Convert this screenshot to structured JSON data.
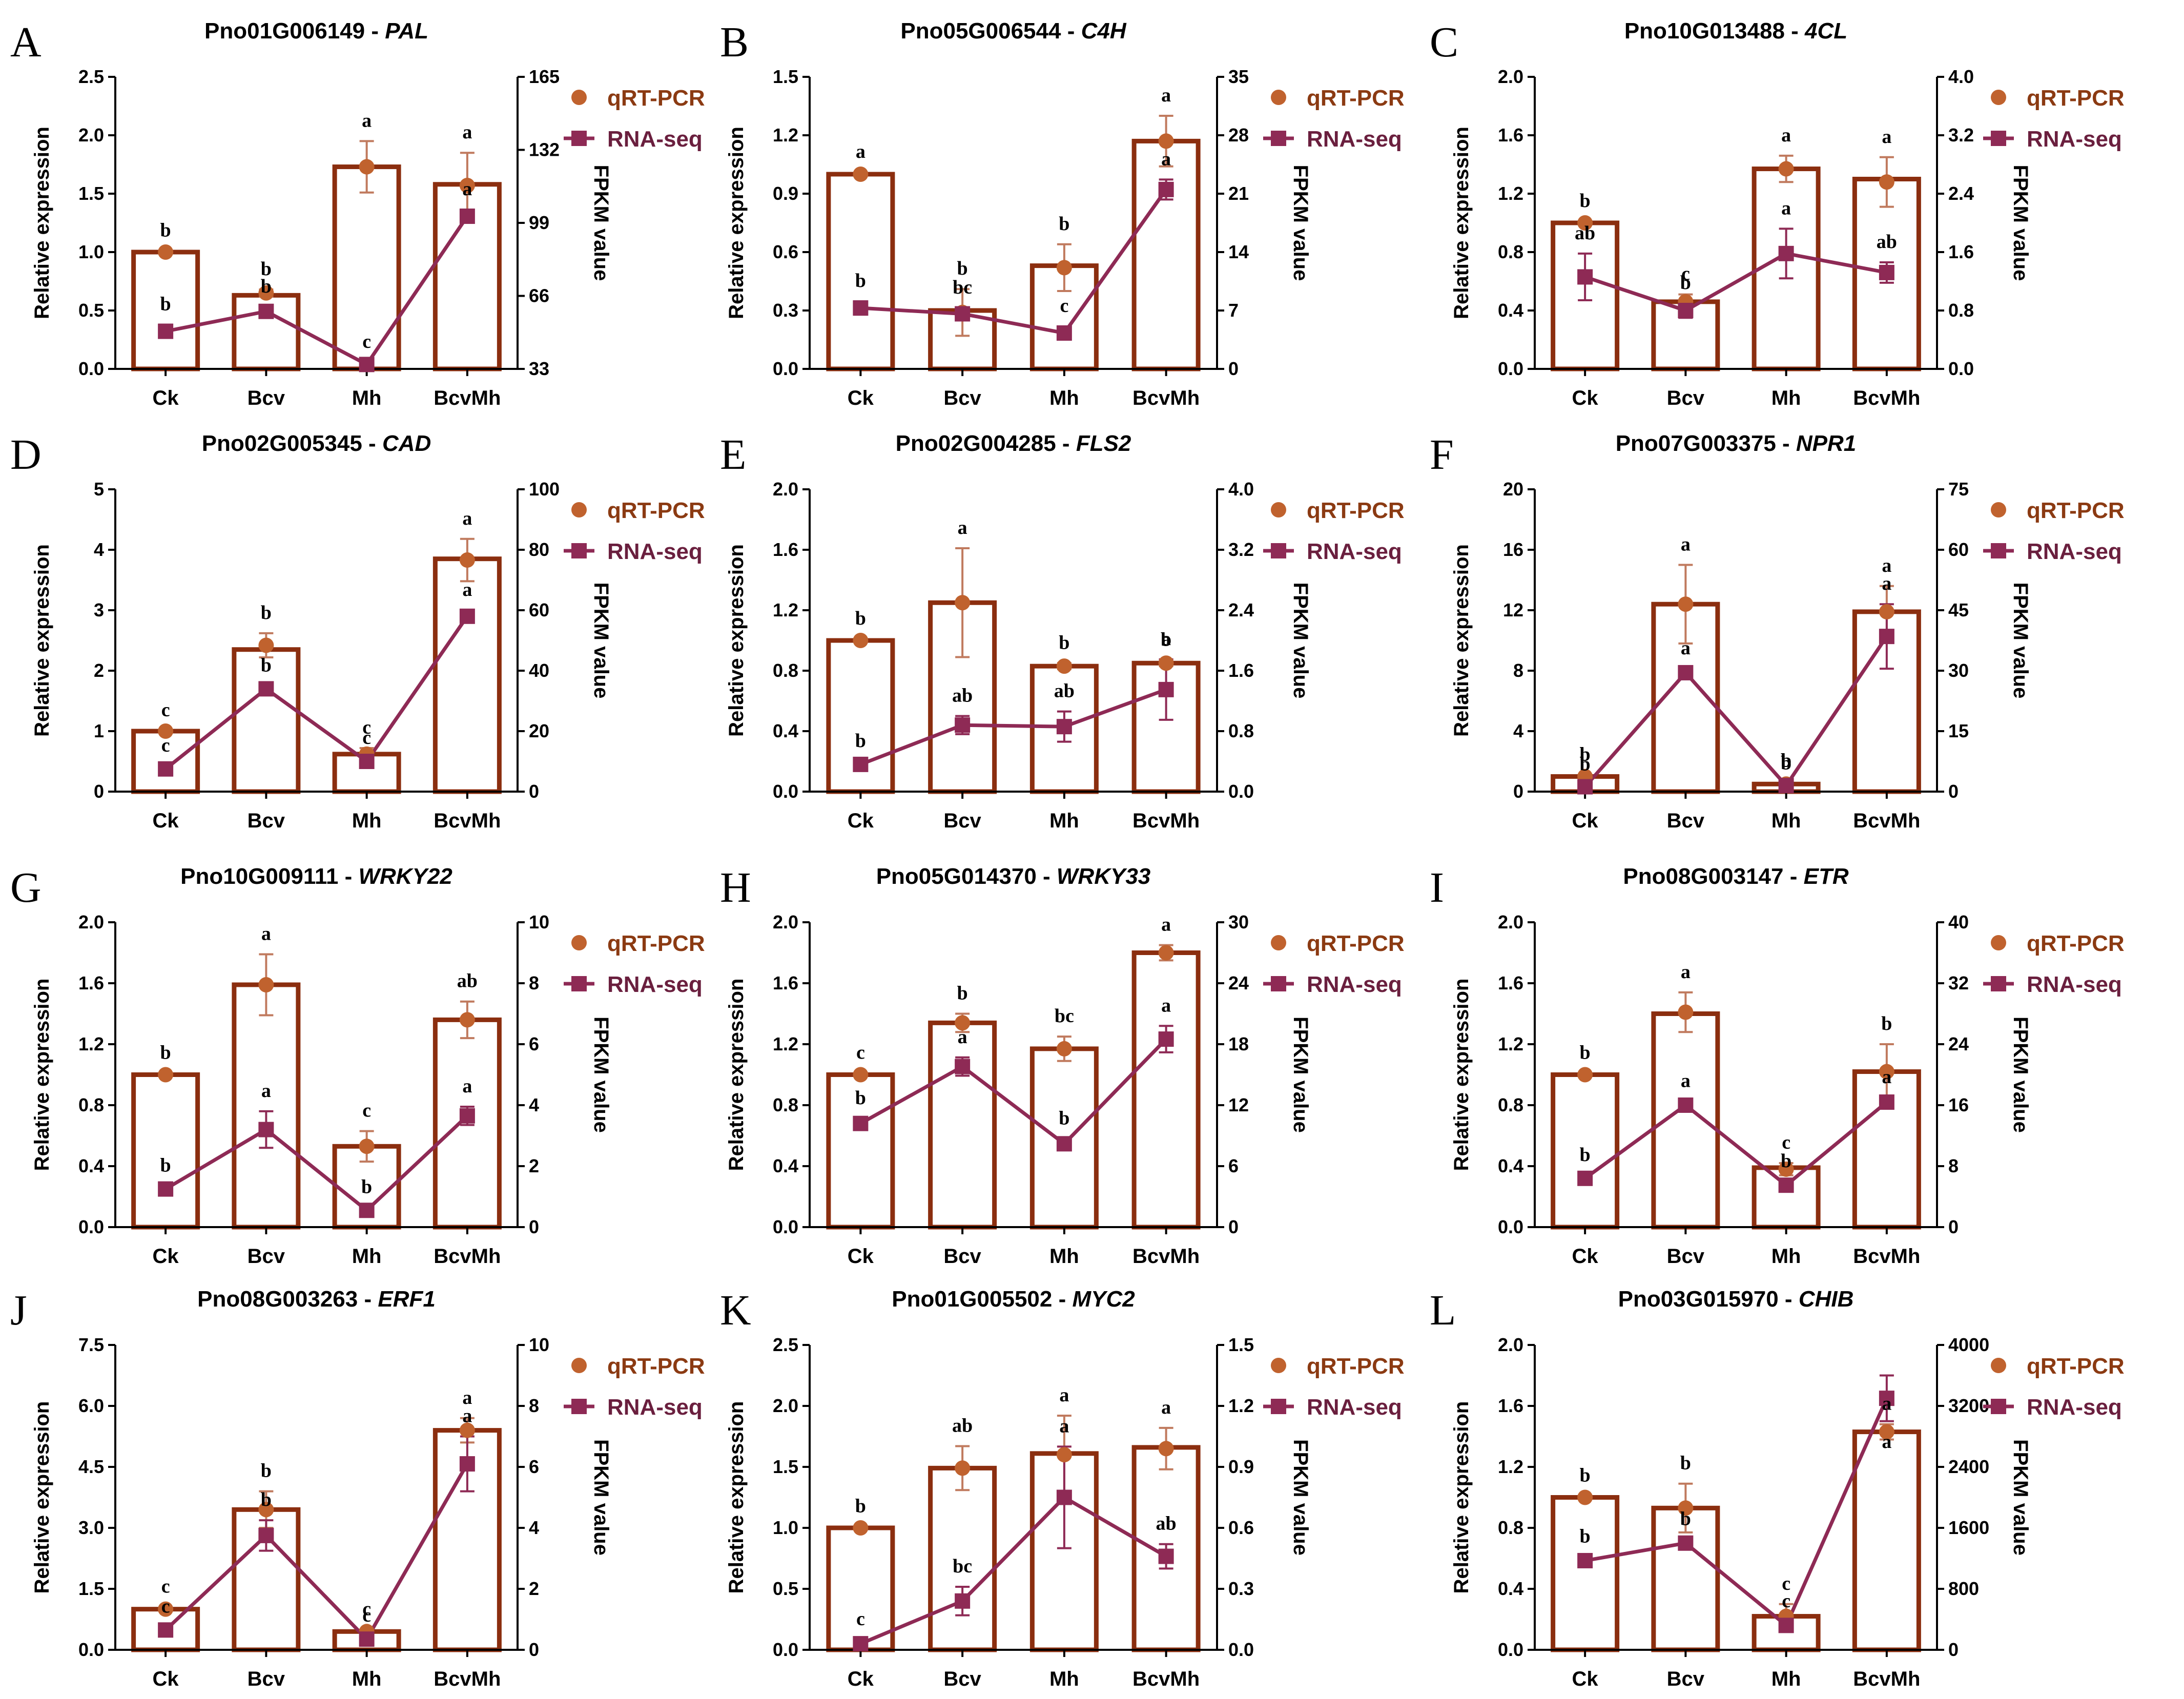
{
  "colors": {
    "bar": "#8B2E0F",
    "qpcr": "#C0622E",
    "rnaseq": "#8E2A55",
    "errorbar": "#C07A5E",
    "axis": "#000000"
  },
  "legend": {
    "qpcr": "qRT-PCR",
    "rnaseq": "RNA-seq"
  },
  "axis_labels": {
    "left": "Relative expression",
    "right": "FPKM value"
  },
  "chart_data": [
    {
      "type": "bar",
      "letter": "A",
      "gene_id": "Pno01G006149 - ",
      "gene": "PAL",
      "categories": [
        "Ck",
        "Bcv",
        "Mh",
        "BcvMh"
      ],
      "ylim": [
        0,
        2.5
      ],
      "yticks": [
        "0.0",
        "0.5",
        "1.0",
        "1.5",
        "2.0",
        "2.5"
      ],
      "y2lim": [
        33,
        165
      ],
      "y2ticks": [
        "33",
        "66",
        "99",
        "132",
        "165"
      ],
      "bars": [
        1.0,
        0.63,
        1.73,
        1.58
      ],
      "qpcr": [
        1.0,
        0.65,
        1.73,
        1.57
      ],
      "qpcr_err": [
        0.01,
        0.03,
        0.22,
        0.28
      ],
      "rnaseq": [
        50,
        59,
        35,
        102
      ],
      "rnaseq_err": [
        3,
        2,
        1,
        3
      ],
      "sig_q": [
        "b",
        "b",
        "a",
        "a"
      ],
      "sig_r": [
        "b",
        "b",
        "c",
        "a"
      ]
    },
    {
      "type": "bar",
      "letter": "B",
      "gene_id": "Pno05G006544 - ",
      "gene": "C4H",
      "categories": [
        "Ck",
        "Bcv",
        "Mh",
        "BcvMh"
      ],
      "ylim": [
        0,
        1.5
      ],
      "yticks": [
        "0.0",
        "0.3",
        "0.6",
        "0.9",
        "1.2",
        "1.5"
      ],
      "y2lim": [
        0,
        35
      ],
      "y2ticks": [
        "0",
        "7",
        "14",
        "21",
        "28",
        "35"
      ],
      "bars": [
        1.0,
        0.3,
        0.53,
        1.17
      ],
      "qpcr": [
        1.0,
        0.29,
        0.52,
        1.17
      ],
      "qpcr_err": [
        0.01,
        0.12,
        0.12,
        0.13
      ],
      "rnaseq": [
        7.3,
        6.6,
        4.3,
        21.5
      ],
      "rnaseq_err": [
        0.8,
        0.7,
        0.8,
        1.2
      ],
      "sig_q": [
        "a",
        "b",
        "b",
        "a"
      ],
      "sig_r": [
        "b",
        "bc",
        "c",
        "a"
      ]
    },
    {
      "type": "bar",
      "letter": "C",
      "gene_id": "Pno10G013488 - ",
      "gene": "4CL",
      "categories": [
        "Ck",
        "Bcv",
        "Mh",
        "BcvMh"
      ],
      "ylim": [
        0,
        2.0
      ],
      "yticks": [
        "0.0",
        "0.4",
        "0.8",
        "1.2",
        "1.6",
        "2.0"
      ],
      "y2lim": [
        0,
        4.0
      ],
      "y2ticks": [
        "0.0",
        "0.8",
        "1.6",
        "2.4",
        "3.2",
        "4.0"
      ],
      "bars": [
        1.0,
        0.46,
        1.37,
        1.3
      ],
      "qpcr": [
        1.0,
        0.46,
        1.37,
        1.28
      ],
      "qpcr_err": [
        0.01,
        0.05,
        0.09,
        0.17
      ],
      "rnaseq": [
        1.26,
        0.8,
        1.58,
        1.32
      ],
      "rnaseq_err": [
        0.32,
        0.1,
        0.34,
        0.14
      ],
      "sig_q": [
        "b",
        "c",
        "a",
        "a"
      ],
      "sig_r": [
        "ab",
        "b",
        "a",
        "ab"
      ]
    },
    {
      "type": "bar",
      "letter": "D",
      "gene_id": "Pno02G005345 - ",
      "gene": "CAD",
      "categories": [
        "Ck",
        "Bcv",
        "Mh",
        "BcvMh"
      ],
      "ylim": [
        0,
        5
      ],
      "yticks": [
        "0",
        "1",
        "2",
        "3",
        "4",
        "5"
      ],
      "y2lim": [
        0,
        100
      ],
      "y2ticks": [
        "0",
        "20",
        "40",
        "60",
        "80",
        "100"
      ],
      "bars": [
        1.0,
        2.35,
        0.62,
        3.85
      ],
      "qpcr": [
        1.0,
        2.42,
        0.62,
        3.83
      ],
      "qpcr_err": [
        0.01,
        0.2,
        0.1,
        0.35
      ],
      "rnaseq": [
        7.5,
        34,
        10,
        58
      ],
      "rnaseq_err": [
        1,
        1,
        1,
        2
      ],
      "sig_q": [
        "c",
        "b",
        "c",
        "a"
      ],
      "sig_r": [
        "c",
        "b",
        "c",
        "a"
      ]
    },
    {
      "type": "bar",
      "letter": "E",
      "gene_id": "Pno02G004285 - ",
      "gene": "FLS2",
      "categories": [
        "Ck",
        "Bcv",
        "Mh",
        "BcvMh"
      ],
      "ylim": [
        0,
        2.0
      ],
      "yticks": [
        "0.0",
        "0.4",
        "0.8",
        "1.2",
        "1.6",
        "2.0"
      ],
      "y2lim": [
        0,
        4.0
      ],
      "y2ticks": [
        "0.0",
        "0.8",
        "1.6",
        "2.4",
        "3.2",
        "4.0"
      ],
      "bars": [
        1.0,
        1.25,
        0.83,
        0.85
      ],
      "qpcr": [
        1.0,
        1.25,
        0.83,
        0.85
      ],
      "qpcr_err": [
        0.01,
        0.36,
        0.02,
        0.02
      ],
      "rnaseq": [
        0.36,
        0.88,
        0.86,
        1.35
      ],
      "rnaseq_err": [
        0.04,
        0.12,
        0.2,
        0.4
      ],
      "sig_q": [
        "b",
        "a",
        "b",
        "b"
      ],
      "sig_r": [
        "b",
        "ab",
        "ab",
        "a"
      ]
    },
    {
      "type": "bar",
      "letter": "F",
      "gene_id": "Pno07G003375 - ",
      "gene": "NPR1",
      "categories": [
        "Ck",
        "Bcv",
        "Mh",
        "BcvMh"
      ],
      "ylim": [
        0,
        20
      ],
      "yticks": [
        "0",
        "4",
        "8",
        "12",
        "16",
        "20"
      ],
      "y2lim": [
        0,
        75
      ],
      "y2ticks": [
        "0",
        "15",
        "30",
        "45",
        "60",
        "75"
      ],
      "bars": [
        1.0,
        12.4,
        0.5,
        11.9
      ],
      "qpcr": [
        1.0,
        12.4,
        0.5,
        11.9
      ],
      "qpcr_err": [
        0.1,
        2.6,
        0.2,
        1.7
      ],
      "rnaseq": [
        1.2,
        29.5,
        1.5,
        38.5
      ],
      "rnaseq_err": [
        0.5,
        1,
        0.5,
        8
      ],
      "sig_q": [
        "b",
        "a",
        "b",
        "a"
      ],
      "sig_r": [
        "b",
        "a",
        "b",
        "a"
      ]
    },
    {
      "type": "bar",
      "letter": "G",
      "gene_id": "Pno10G009111 - ",
      "gene": "WRKY22",
      "categories": [
        "Ck",
        "Bcv",
        "Mh",
        "BcvMh"
      ],
      "ylim": [
        0,
        2.0
      ],
      "yticks": [
        "0.0",
        "0.4",
        "0.8",
        "1.2",
        "1.6",
        "2.0"
      ],
      "y2lim": [
        0,
        10
      ],
      "y2ticks": [
        "0",
        "2",
        "4",
        "6",
        "8",
        "10"
      ],
      "bars": [
        1.0,
        1.59,
        0.53,
        1.36
      ],
      "qpcr": [
        1.0,
        1.59,
        0.53,
        1.36
      ],
      "qpcr_err": [
        0.01,
        0.2,
        0.1,
        0.12
      ],
      "rnaseq": [
        1.25,
        3.2,
        0.55,
        3.65
      ],
      "rnaseq_err": [
        0.1,
        0.6,
        0.1,
        0.3
      ],
      "sig_q": [
        "b",
        "a",
        "c",
        "ab"
      ],
      "sig_r": [
        "b",
        "a",
        "b",
        "a"
      ]
    },
    {
      "type": "bar",
      "letter": "H",
      "gene_id": "Pno05G014370 - ",
      "gene": "WRKY33",
      "categories": [
        "Ck",
        "Bcv",
        "Mh",
        "BcvMh"
      ],
      "ylim": [
        0,
        2.0
      ],
      "yticks": [
        "0.0",
        "0.4",
        "0.8",
        "1.2",
        "1.6",
        "2.0"
      ],
      "y2lim": [
        0,
        30
      ],
      "y2ticks": [
        "0",
        "6",
        "12",
        "18",
        "24",
        "30"
      ],
      "bars": [
        1.0,
        1.34,
        1.17,
        1.8
      ],
      "qpcr": [
        1.0,
        1.34,
        1.17,
        1.8
      ],
      "qpcr_err": [
        0.01,
        0.06,
        0.08,
        0.05
      ],
      "rnaseq": [
        10.2,
        15.8,
        8.2,
        18.5
      ],
      "rnaseq_err": [
        0.5,
        0.9,
        0.5,
        1.3
      ],
      "sig_q": [
        "c",
        "b",
        "bc",
        "a"
      ],
      "sig_r": [
        "b",
        "a",
        "b",
        "a"
      ]
    },
    {
      "type": "bar",
      "letter": "I",
      "gene_id": "Pno08G003147 - ",
      "gene": "ETR",
      "categories": [
        "Ck",
        "Bcv",
        "Mh",
        "BcvMh"
      ],
      "ylim": [
        0,
        2.0
      ],
      "yticks": [
        "0.0",
        "0.4",
        "0.8",
        "1.2",
        "1.6",
        "2.0"
      ],
      "y2lim": [
        0,
        40
      ],
      "y2ticks": [
        "0",
        "8",
        "16",
        "24",
        "32",
        "40"
      ],
      "bars": [
        1.0,
        1.4,
        0.39,
        1.02
      ],
      "qpcr": [
        1.0,
        1.41,
        0.38,
        1.02
      ],
      "qpcr_err": [
        0.01,
        0.13,
        0.04,
        0.18
      ],
      "rnaseq": [
        6.4,
        16,
        5.5,
        16.4
      ],
      "rnaseq_err": [
        0.4,
        0.5,
        0.5,
        0.6
      ],
      "sig_q": [
        "b",
        "a",
        "c",
        "b"
      ],
      "sig_r": [
        "b",
        "a",
        "b",
        "a"
      ]
    },
    {
      "type": "bar",
      "letter": "J",
      "gene_id": "Pno08G003263 - ",
      "gene": "ERF1",
      "categories": [
        "Ck",
        "Bcv",
        "Mh",
        "BcvMh"
      ],
      "ylim": [
        0,
        7.5
      ],
      "yticks": [
        "0.0",
        "1.5",
        "3.0",
        "4.5",
        "6.0",
        "7.5"
      ],
      "y2lim": [
        0,
        10
      ],
      "y2ticks": [
        "0",
        "2",
        "4",
        "6",
        "8",
        "10"
      ],
      "bars": [
        1.0,
        3.45,
        0.45,
        5.4
      ],
      "qpcr": [
        1.0,
        3.45,
        0.45,
        5.4
      ],
      "qpcr_err": [
        0.05,
        0.45,
        0.05,
        0.3
      ],
      "rnaseq": [
        0.65,
        3.75,
        0.35,
        6.1
      ],
      "rnaseq_err": [
        0.1,
        0.5,
        0.1,
        0.9
      ],
      "sig_q": [
        "c",
        "b",
        "c",
        "a"
      ],
      "sig_r": [
        "c",
        "b",
        "c",
        "a"
      ]
    },
    {
      "type": "bar",
      "letter": "K",
      "gene_id": "Pno01G005502 - ",
      "gene": "MYC2",
      "categories": [
        "Ck",
        "Bcv",
        "Mh",
        "BcvMh"
      ],
      "ylim": [
        0,
        2.5
      ],
      "yticks": [
        "0.0",
        "0.5",
        "1.0",
        "1.5",
        "2.0",
        "2.5"
      ],
      "y2lim": [
        0,
        1.5
      ],
      "y2ticks": [
        "0.0",
        "0.3",
        "0.6",
        "0.9",
        "1.2",
        "1.5"
      ],
      "bars": [
        1.0,
        1.49,
        1.61,
        1.66
      ],
      "qpcr": [
        1.0,
        1.49,
        1.6,
        1.65
      ],
      "qpcr_err": [
        0.01,
        0.18,
        0.32,
        0.17
      ],
      "rnaseq": [
        0.03,
        0.24,
        0.75,
        0.46
      ],
      "rnaseq_err": [
        0.02,
        0.07,
        0.25,
        0.06
      ],
      "sig_q": [
        "b",
        "ab",
        "a",
        "a"
      ],
      "sig_r": [
        "c",
        "bc",
        "a",
        "ab"
      ]
    },
    {
      "type": "bar",
      "letter": "L",
      "gene_id": "Pno03G015970 - ",
      "gene": "CHIB",
      "categories": [
        "Ck",
        "Bcv",
        "Mh",
        "BcvMh"
      ],
      "ylim": [
        0,
        2.0
      ],
      "yticks": [
        "0.0",
        "0.4",
        "0.8",
        "1.2",
        "1.6",
        "2.0"
      ],
      "y2lim": [
        0,
        4000
      ],
      "y2ticks": [
        "0",
        "800",
        "1600",
        "2400",
        "3200",
        "4000"
      ],
      "bars": [
        1.0,
        0.93,
        0.22,
        1.43
      ],
      "qpcr": [
        1.0,
        0.93,
        0.22,
        1.43
      ],
      "qpcr_err": [
        0.01,
        0.16,
        0.08,
        0.05
      ],
      "rnaseq": [
        1170,
        1400,
        320,
        3300
      ],
      "rnaseq_err": [
        50,
        50,
        50,
        300
      ],
      "sig_q": [
        "b",
        "b",
        "c",
        "a"
      ],
      "sig_r": [
        "b",
        "b",
        "c",
        "a"
      ]
    }
  ]
}
